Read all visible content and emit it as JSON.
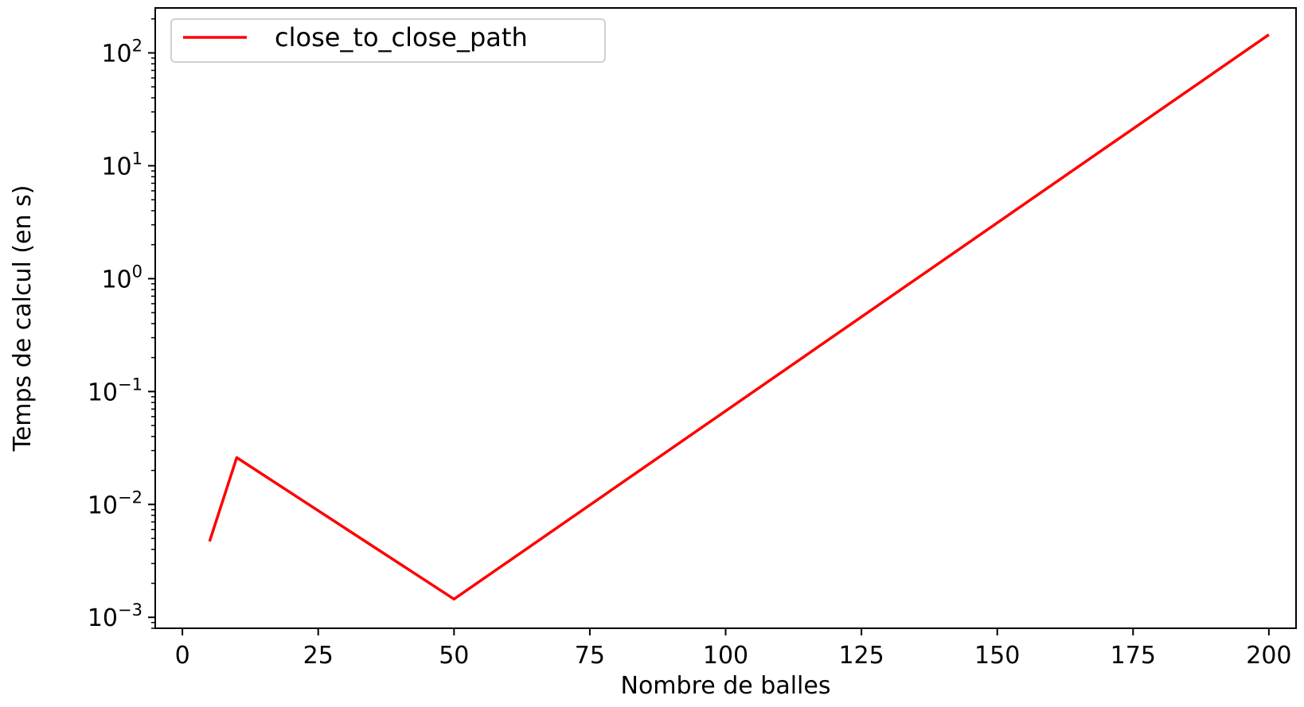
{
  "chart_data": {
    "type": "line",
    "title": "",
    "xlabel": "Nombre de balles",
    "ylabel": "Temps de calcul (en s)",
    "xscale": "linear",
    "yscale": "log",
    "xlim": [
      -5,
      205
    ],
    "ylim": [
      0.0008,
      250
    ],
    "xticks": [
      0,
      25,
      50,
      75,
      100,
      125,
      150,
      175,
      200
    ],
    "xtick_labels": [
      "0",
      "25",
      "50",
      "75",
      "100",
      "125",
      "150",
      "175",
      "200"
    ],
    "yticks": [
      0.001,
      0.01,
      0.1,
      1,
      10,
      100
    ],
    "ytick_labels": [
      {
        "base": "10",
        "exp": "−3"
      },
      {
        "base": "10",
        "exp": "−2"
      },
      {
        "base": "10",
        "exp": "−1"
      },
      {
        "base": "10",
        "exp": "0"
      },
      {
        "base": "10",
        "exp": "1"
      },
      {
        "base": "10",
        "exp": "2"
      }
    ],
    "grid": false,
    "legend_position": "upper-left",
    "series": [
      {
        "name": "close_to_close_path",
        "color": "#ff0000",
        "x": [
          5,
          10,
          50,
          200
        ],
        "y": [
          0.0047,
          0.026,
          0.00145,
          145
        ]
      }
    ]
  }
}
